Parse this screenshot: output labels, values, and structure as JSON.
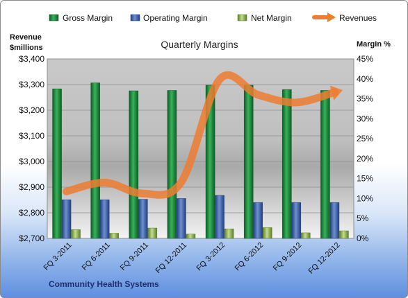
{
  "chart_data": {
    "type": "bar",
    "title": "Quarterly Margins",
    "left_axis_label": [
      "Revenue",
      "$millions"
    ],
    "right_axis_label": "Margin %",
    "categories": [
      "FQ 3-2011",
      "FQ 6-2011",
      "FQ 9-2011",
      "FQ 12-2011",
      "FQ 3-2012",
      "FQ 6-2012",
      "FQ 9-2012",
      "FQ 12-2012"
    ],
    "left_ylim": [
      2700,
      3400
    ],
    "left_ticks": [
      "$2,700",
      "$2,800",
      "$2,900",
      "$3,000",
      "$3,100",
      "$3,200",
      "$3,300",
      "$3,400"
    ],
    "right_ylim": [
      0,
      45
    ],
    "right_ticks": [
      "0%",
      "5%",
      "10%",
      "15%",
      "20%",
      "25%",
      "30%",
      "35%",
      "40%",
      "45%"
    ],
    "legend_position": "top",
    "grid": true,
    "series": [
      {
        "name": "Gross Margin",
        "type": "bar",
        "axis": "right",
        "color": "#1e8f3e",
        "values": [
          37.5,
          39.0,
          37.0,
          37.1,
          38.4,
          38.4,
          37.3,
          37.1
        ]
      },
      {
        "name": "Operating Margin",
        "type": "bar",
        "axis": "right",
        "color": "#3c64b4",
        "values": [
          9.7,
          9.7,
          9.8,
          10.0,
          10.8,
          9.0,
          9.0,
          9.0
        ]
      },
      {
        "name": "Net Margin",
        "type": "bar",
        "axis": "right",
        "color": "#86b04a",
        "values": [
          2.2,
          1.3,
          2.6,
          1.1,
          2.4,
          2.7,
          1.4,
          1.9
        ]
      },
      {
        "name": "Revenues",
        "type": "line",
        "axis": "left",
        "color": "#ed7d31",
        "values": [
          2883,
          2918,
          2875,
          2920,
          3320,
          3260,
          3230,
          3270
        ]
      }
    ]
  },
  "footer": {
    "company": "Community Health Systems"
  }
}
